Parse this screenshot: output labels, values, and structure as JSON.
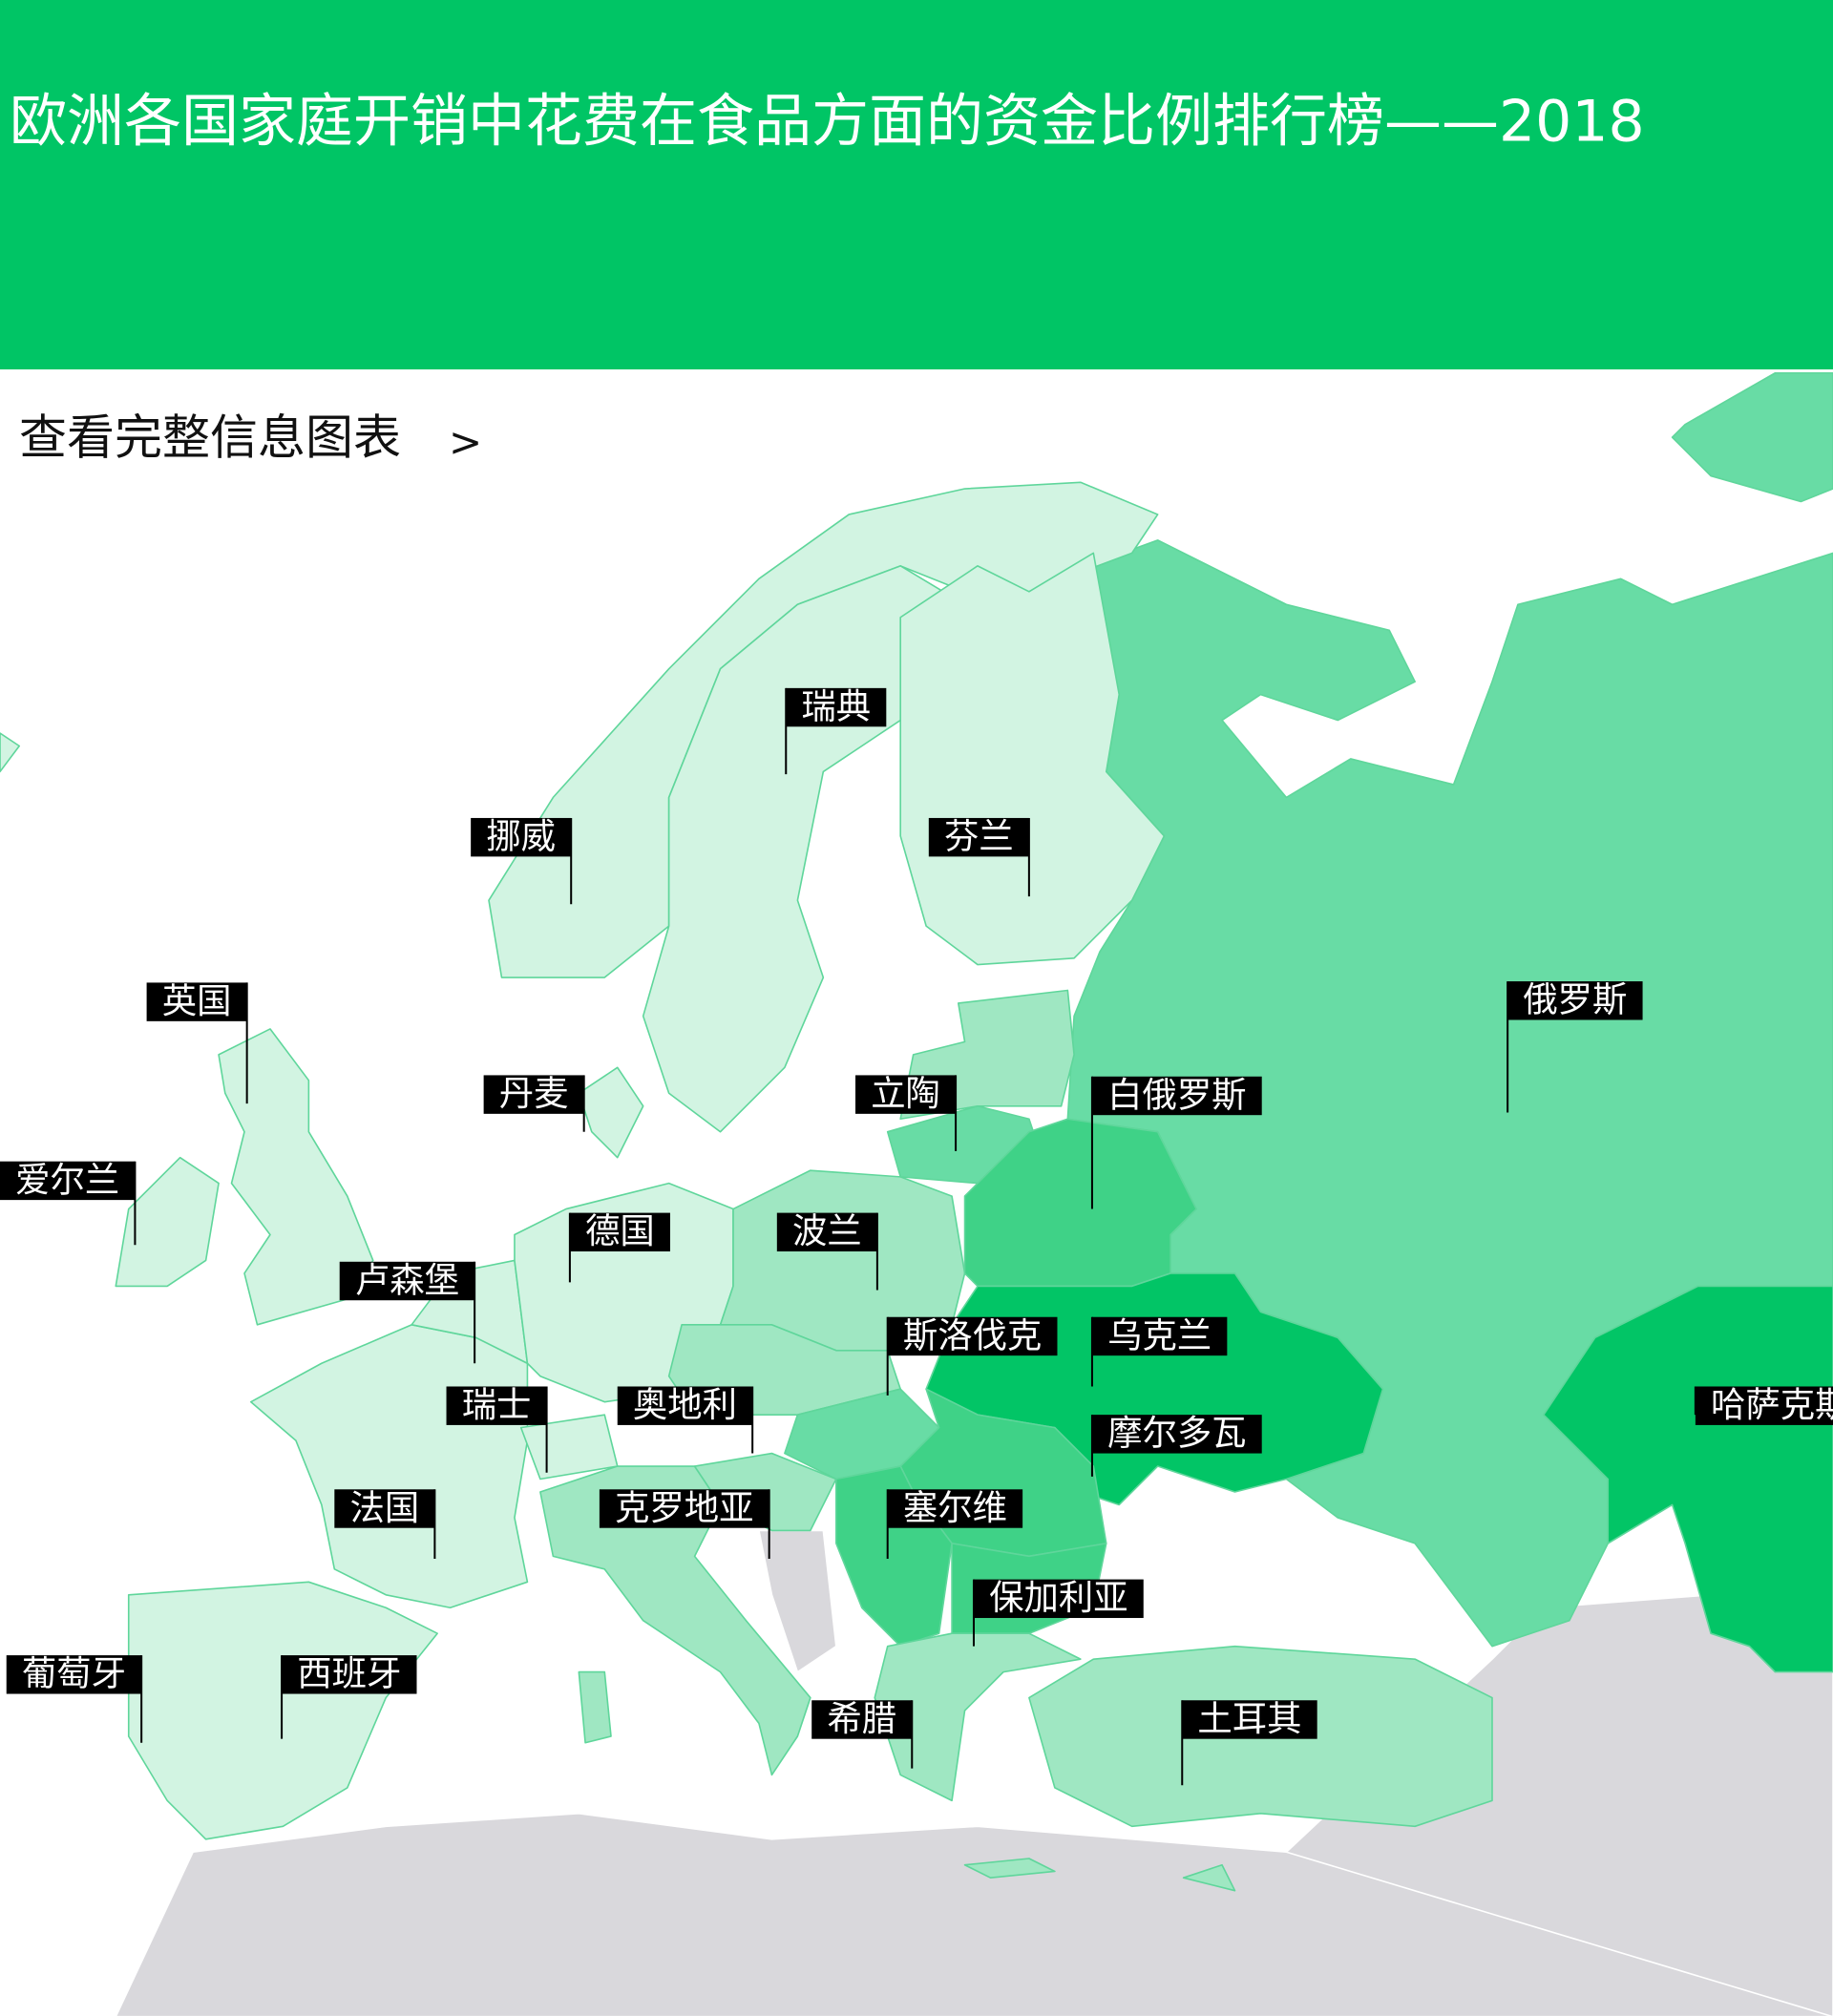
{
  "header": {
    "title": "欧洲各国家庭开销中花费在食品方面的资金比例排行榜——2018"
  },
  "link": {
    "text": "查看完整信息图表",
    "arrow": ">"
  },
  "map": {
    "labels": [
      "瑞典",
      "挪威",
      "芬兰",
      "英国",
      "丹麦",
      "立陶",
      "白俄罗斯",
      "俄罗斯",
      "爱尔兰",
      "德国",
      "波兰",
      "卢森堡",
      "斯洛伐克",
      "乌克兰",
      "瑞士",
      "奥地利",
      "哈萨克斯坦",
      "摩尔多瓦",
      "法国",
      "克罗地亚",
      "塞尔维",
      "保加利亚",
      "葡萄牙",
      "西班牙",
      "希腊",
      "土耳其"
    ]
  }
}
